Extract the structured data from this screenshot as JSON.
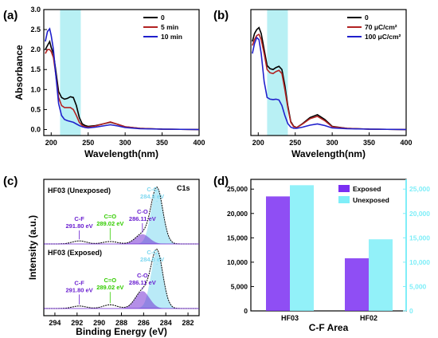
{
  "colors": {
    "black": "#000000",
    "red": "#b22222",
    "blue": "#2020cc",
    "cyan_band": "#b8f0f4",
    "purple": "#6a1fd0",
    "green": "#33cc00",
    "light_blue": "#7fd8f0",
    "bar_purple": "#7b2ff2",
    "bar_cyan": "#7feef8"
  },
  "chart_data": [
    {
      "id": "a",
      "panel_label": "(a)",
      "type": "line",
      "xlabel": "Wavelength(nm)",
      "ylabel": "Absorbance",
      "xlim": [
        190,
        400
      ],
      "ylim": [
        -0.15,
        3.0
      ],
      "xticks": [
        200,
        250,
        300,
        350,
        400
      ],
      "yticks": [
        0.0,
        0.5,
        1.0,
        1.5,
        2.0,
        2.5,
        3.0
      ],
      "ytick_labels": [
        "0.0",
        "0.5",
        "1.0",
        "1.5",
        "2.0",
        "2.5",
        "3.0"
      ],
      "highlight_band": [
        212,
        240
      ],
      "legend": "top-right",
      "series": [
        {
          "name": "0",
          "color": "black",
          "x": [
            192,
            195,
            198,
            200,
            203,
            206,
            210,
            214,
            218,
            222,
            226,
            230,
            234,
            238,
            242,
            246,
            250,
            260,
            270,
            280,
            290,
            300,
            320,
            350,
            400
          ],
          "y": [
            2.0,
            2.1,
            2.2,
            2.05,
            1.9,
            1.5,
            0.95,
            0.8,
            0.76,
            0.78,
            0.82,
            0.8,
            0.6,
            0.3,
            0.14,
            0.1,
            0.08,
            0.1,
            0.14,
            0.18,
            0.13,
            0.07,
            0.03,
            0.01,
            0.0
          ]
        },
        {
          "name": "5 min",
          "color": "red",
          "x": [
            192,
            195,
            198,
            200,
            203,
            206,
            210,
            214,
            218,
            222,
            226,
            230,
            234,
            238,
            242,
            246,
            250,
            260,
            270,
            280,
            290,
            300,
            320,
            350,
            400
          ],
          "y": [
            1.9,
            2.0,
            2.0,
            1.95,
            1.8,
            1.4,
            0.8,
            0.6,
            0.55,
            0.55,
            0.55,
            0.5,
            0.35,
            0.18,
            0.1,
            0.07,
            0.06,
            0.09,
            0.14,
            0.19,
            0.13,
            0.07,
            0.03,
            0.01,
            0.0
          ]
        },
        {
          "name": "10 min",
          "color": "blue",
          "x": [
            192,
            195,
            198,
            200,
            203,
            206,
            210,
            214,
            218,
            222,
            226,
            230,
            234,
            238,
            242,
            246,
            250,
            260,
            270,
            280,
            290,
            300,
            320,
            350,
            400
          ],
          "y": [
            2.2,
            2.45,
            2.52,
            2.35,
            2.0,
            1.4,
            0.65,
            0.35,
            0.25,
            0.22,
            0.2,
            0.18,
            0.14,
            0.1,
            0.07,
            0.05,
            0.04,
            0.06,
            0.09,
            0.12,
            0.09,
            0.05,
            0.02,
            0.01,
            0.0
          ]
        }
      ]
    },
    {
      "id": "b",
      "panel_label": "(b)",
      "type": "line",
      "xlabel": "Wavelength(nm)",
      "ylabel": "",
      "xlim": [
        190,
        400
      ],
      "ylim": [
        -0.15,
        3.0
      ],
      "xticks": [
        200,
        250,
        300,
        350,
        400
      ],
      "yticks": [],
      "highlight_band": [
        212,
        240
      ],
      "legend": "top-right",
      "series": [
        {
          "name": "0",
          "color": "black",
          "x": [
            192,
            195,
            198,
            201,
            204,
            208,
            212,
            216,
            220,
            224,
            228,
            232,
            236,
            240,
            244,
            248,
            252,
            260,
            270,
            280,
            290,
            300,
            320,
            350,
            400
          ],
          "y": [
            2.2,
            2.4,
            2.5,
            2.55,
            2.4,
            2.0,
            1.6,
            1.52,
            1.5,
            1.55,
            1.58,
            1.5,
            1.1,
            0.6,
            0.2,
            0.08,
            0.05,
            0.15,
            0.3,
            0.37,
            0.25,
            0.08,
            0.03,
            0.01,
            0.0
          ]
        },
        {
          "name": "70 μC/cm²",
          "color": "red",
          "x": [
            192,
            195,
            198,
            201,
            204,
            208,
            212,
            216,
            220,
            224,
            228,
            232,
            236,
            240,
            244,
            248,
            252,
            260,
            270,
            280,
            290,
            300,
            320,
            350,
            400
          ],
          "y": [
            2.1,
            2.25,
            2.35,
            2.38,
            2.25,
            1.9,
            1.5,
            1.42,
            1.4,
            1.45,
            1.48,
            1.4,
            1.0,
            0.55,
            0.18,
            0.07,
            0.05,
            0.14,
            0.27,
            0.33,
            0.22,
            0.07,
            0.03,
            0.01,
            0.0
          ]
        },
        {
          "name": "100 μC/cm²",
          "color": "blue",
          "x": [
            192,
            195,
            198,
            201,
            204,
            208,
            212,
            216,
            220,
            224,
            228,
            232,
            236,
            240,
            244,
            248,
            252,
            260,
            270,
            280,
            290,
            300,
            320,
            350,
            400
          ],
          "y": [
            1.9,
            2.15,
            2.3,
            2.25,
            1.9,
            1.2,
            0.8,
            0.76,
            0.75,
            0.76,
            0.74,
            0.6,
            0.35,
            0.15,
            0.06,
            0.03,
            0.03,
            0.06,
            0.11,
            0.14,
            0.1,
            0.04,
            0.02,
            0.01,
            0.0
          ]
        }
      ]
    },
    {
      "id": "c",
      "panel_label": "(c)",
      "type": "line",
      "xlabel": "Binding Energy (eV)",
      "ylabel": "Intensity (a.u.)",
      "xlim": [
        295,
        281
      ],
      "xticks": [
        294,
        292,
        290,
        288,
        286,
        284,
        282
      ],
      "corner_label": "C1s",
      "subpanels": [
        {
          "title": "HF03 (Unexposed)",
          "peaks": [
            {
              "name": "C-F",
              "value": "291.80 eV",
              "center": 291.8,
              "height": 0.05,
              "color": "purple"
            },
            {
              "name": "C=O",
              "value": "289.02 eV",
              "center": 289.02,
              "height": 0.04,
              "color": "green"
            },
            {
              "name": "C-O",
              "value": "286.11 eV",
              "center": 286.11,
              "height": 0.16,
              "color": "purple"
            },
            {
              "name": "C-C",
              "value": "284.8 eV",
              "center": 284.8,
              "height": 0.92,
              "color": "light_blue"
            }
          ]
        },
        {
          "title": "HF03 (Exposed)",
          "peaks": [
            {
              "name": "C-F",
              "value": "291.80 eV",
              "center": 291.8,
              "height": 0.04,
              "color": "purple"
            },
            {
              "name": "C=O",
              "value": "289.02 eV",
              "center": 289.02,
              "height": 0.06,
              "color": "green"
            },
            {
              "name": "C-O",
              "value": "286.11 eV",
              "center": 286.11,
              "height": 0.28,
              "color": "purple"
            },
            {
              "name": "C-C",
              "value": "284.8 eV",
              "center": 284.8,
              "height": 0.92,
              "color": "light_blue"
            }
          ]
        }
      ]
    },
    {
      "id": "d",
      "panel_label": "(d)",
      "type": "bar",
      "xlabel": "C-F Area",
      "categories": [
        "HF03",
        "HF02"
      ],
      "ylim_left": [
        0,
        27000
      ],
      "ylim_right": [
        0,
        27000
      ],
      "yticks": [
        0,
        5000,
        10000,
        15000,
        20000,
        25000
      ],
      "ytick_labels": [
        "0",
        "5,000",
        "10,000",
        "15,000",
        "20,000",
        "25,000"
      ],
      "legend": "top-right",
      "series": [
        {
          "name": "Exposed",
          "color": "bar_purple",
          "values": [
            23500,
            10800
          ]
        },
        {
          "name": "Unexposed",
          "color": "bar_cyan",
          "values": [
            25800,
            14700
          ]
        }
      ]
    }
  ]
}
